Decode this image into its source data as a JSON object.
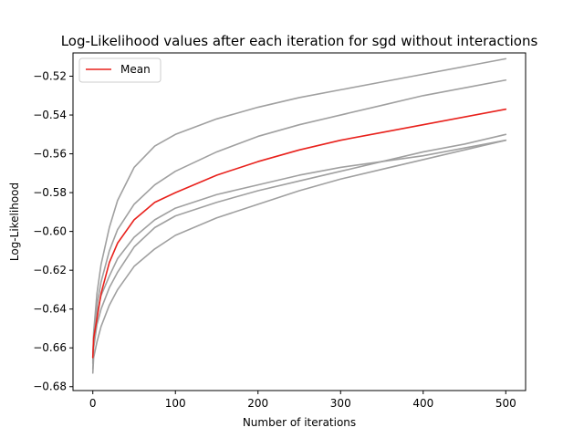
{
  "chart_data": {
    "type": "line",
    "title": "Log-Likelihood values after each iteration for sgd without interactions",
    "xlabel": "Number of iterations",
    "ylabel": "Log-Likelihood",
    "xlim": [
      -24,
      524
    ],
    "ylim": [
      -0.682,
      -0.508
    ],
    "xticks": [
      0,
      100,
      200,
      300,
      400,
      500
    ],
    "yticks": [
      -0.68,
      -0.66,
      -0.64,
      -0.62,
      -0.6,
      -0.58,
      -0.56,
      -0.54,
      -0.52
    ],
    "grid": false,
    "legend": {
      "position": "top-left",
      "entries": [
        "Mean"
      ]
    },
    "series": [
      {
        "color": "#a0a0a0",
        "points": [
          [
            0,
            -0.667
          ],
          [
            1,
            -0.652
          ],
          [
            5,
            -0.632
          ],
          [
            10,
            -0.617
          ],
          [
            20,
            -0.598
          ],
          [
            30,
            -0.584
          ],
          [
            50,
            -0.567
          ],
          [
            75,
            -0.556
          ],
          [
            100,
            -0.55
          ],
          [
            150,
            -0.542
          ],
          [
            200,
            -0.536
          ],
          [
            250,
            -0.531
          ],
          [
            300,
            -0.527
          ],
          [
            350,
            -0.523
          ],
          [
            400,
            -0.519
          ],
          [
            450,
            -0.515
          ],
          [
            500,
            -0.511
          ]
        ]
      },
      {
        "color": "#a0a0a0",
        "points": [
          [
            0,
            -0.668
          ],
          [
            1,
            -0.656
          ],
          [
            5,
            -0.638
          ],
          [
            10,
            -0.626
          ],
          [
            20,
            -0.61
          ],
          [
            30,
            -0.599
          ],
          [
            50,
            -0.586
          ],
          [
            75,
            -0.576
          ],
          [
            100,
            -0.569
          ],
          [
            150,
            -0.559
          ],
          [
            200,
            -0.551
          ],
          [
            250,
            -0.545
          ],
          [
            300,
            -0.54
          ],
          [
            350,
            -0.535
          ],
          [
            400,
            -0.53
          ],
          [
            450,
            -0.526
          ],
          [
            500,
            -0.522
          ]
        ]
      },
      {
        "color": "#a0a0a0",
        "points": [
          [
            0,
            -0.665
          ],
          [
            1,
            -0.654
          ],
          [
            5,
            -0.642
          ],
          [
            10,
            -0.633
          ],
          [
            20,
            -0.623
          ],
          [
            30,
            -0.614
          ],
          [
            50,
            -0.603
          ],
          [
            75,
            -0.594
          ],
          [
            100,
            -0.588
          ],
          [
            150,
            -0.581
          ],
          [
            200,
            -0.576
          ],
          [
            250,
            -0.571
          ],
          [
            300,
            -0.567
          ],
          [
            350,
            -0.564
          ],
          [
            400,
            -0.561
          ],
          [
            450,
            -0.557
          ],
          [
            500,
            -0.553
          ]
        ]
      },
      {
        "color": "#a0a0a0",
        "points": [
          [
            0,
            -0.671
          ],
          [
            1,
            -0.66
          ],
          [
            5,
            -0.648
          ],
          [
            10,
            -0.64
          ],
          [
            20,
            -0.629
          ],
          [
            30,
            -0.621
          ],
          [
            50,
            -0.608
          ],
          [
            75,
            -0.598
          ],
          [
            100,
            -0.592
          ],
          [
            150,
            -0.585
          ],
          [
            200,
            -0.579
          ],
          [
            250,
            -0.574
          ],
          [
            300,
            -0.569
          ],
          [
            350,
            -0.564
          ],
          [
            400,
            -0.559
          ],
          [
            450,
            -0.555
          ],
          [
            500,
            -0.55
          ]
        ]
      },
      {
        "color": "#a0a0a0",
        "points": [
          [
            0,
            -0.673
          ],
          [
            1,
            -0.665
          ],
          [
            5,
            -0.657
          ],
          [
            10,
            -0.649
          ],
          [
            20,
            -0.638
          ],
          [
            30,
            -0.63
          ],
          [
            50,
            -0.618
          ],
          [
            75,
            -0.609
          ],
          [
            100,
            -0.602
          ],
          [
            150,
            -0.593
          ],
          [
            200,
            -0.586
          ],
          [
            250,
            -0.579
          ],
          [
            300,
            -0.573
          ],
          [
            350,
            -0.568
          ],
          [
            400,
            -0.563
          ],
          [
            450,
            -0.558
          ],
          [
            500,
            -0.553
          ]
        ]
      },
      {
        "name": "Mean",
        "color": "#e8211c",
        "points": [
          [
            0,
            -0.665
          ],
          [
            1,
            -0.655
          ],
          [
            5,
            -0.645
          ],
          [
            10,
            -0.632
          ],
          [
            20,
            -0.616
          ],
          [
            30,
            -0.606
          ],
          [
            50,
            -0.594
          ],
          [
            75,
            -0.585
          ],
          [
            100,
            -0.58
          ],
          [
            150,
            -0.571
          ],
          [
            200,
            -0.564
          ],
          [
            250,
            -0.558
          ],
          [
            300,
            -0.553
          ],
          [
            350,
            -0.549
          ],
          [
            400,
            -0.545
          ],
          [
            450,
            -0.541
          ],
          [
            500,
            -0.537
          ]
        ]
      }
    ]
  }
}
